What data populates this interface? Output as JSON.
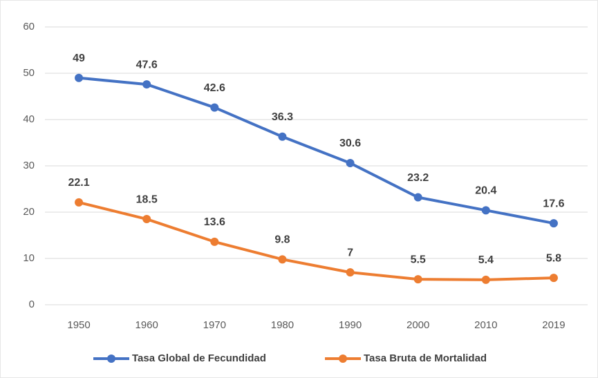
{
  "chart_data": {
    "type": "line",
    "categories": [
      "1950",
      "1960",
      "1970",
      "1980",
      "1990",
      "2000",
      "2010",
      "2019"
    ],
    "series": [
      {
        "name": "Tasa Global de Fecundidad",
        "color": "#4472c4",
        "values": [
          49,
          47.6,
          42.6,
          36.3,
          30.6,
          23.2,
          20.4,
          17.6
        ]
      },
      {
        "name": "Tasa Bruta de Mortalidad",
        "color": "#ed7d31",
        "values": [
          22.1,
          18.5,
          13.6,
          9.8,
          7,
          5.5,
          5.4,
          5.8
        ]
      }
    ],
    "ylim": [
      0,
      60
    ],
    "yticks": [
      0,
      10,
      20,
      30,
      40,
      50,
      60
    ],
    "grid": true,
    "legend": "bottom"
  }
}
